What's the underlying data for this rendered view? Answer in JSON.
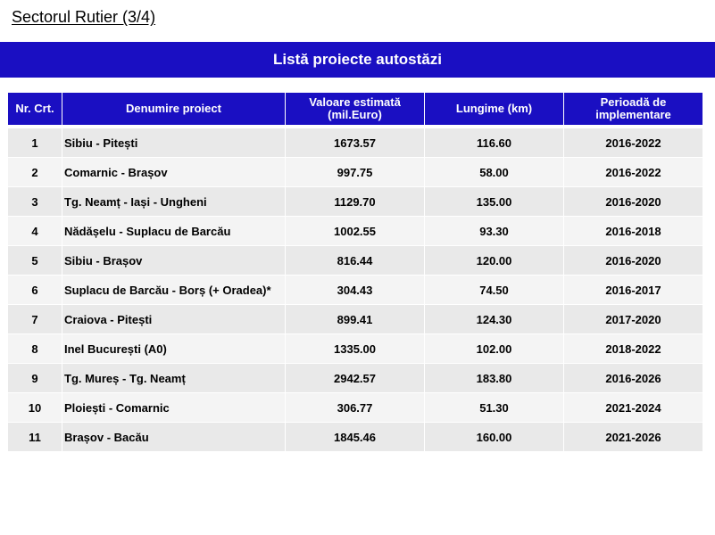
{
  "page": {
    "title": "Sectorul Rutier (3/4)",
    "banner": "Listă proiecte autostăzi"
  },
  "colors": {
    "accent": "#1a0fc2",
    "row_odd": "#e9e9e9",
    "row_even": "#f4f4f4"
  },
  "table": {
    "headers": {
      "nr": "Nr. Crt.",
      "name": "Denumire proiect",
      "value": "Valoare estimată (mil.Euro)",
      "length": "Lungime (km)",
      "period": "Perioadă de implementare"
    },
    "rows": [
      {
        "nr": "1",
        "name": "Sibiu - Pitești",
        "value": "1673.57",
        "length": "116.60",
        "period": "2016-2022"
      },
      {
        "nr": "2",
        "name": "Comarnic - Brașov",
        "value": "997.75",
        "length": "58.00",
        "period": "2016-2022"
      },
      {
        "nr": "3",
        "name": "Tg. Neamț - Iași - Ungheni",
        "value": "1129.70",
        "length": "135.00",
        "period": "2016-2020"
      },
      {
        "nr": "4",
        "name": "Nădășelu - Suplacu de Barcău",
        "value": "1002.55",
        "length": "93.30",
        "period": "2016-2018"
      },
      {
        "nr": "5",
        "name": "Sibiu - Brașov",
        "value": "816.44",
        "length": "120.00",
        "period": "2016-2020"
      },
      {
        "nr": "6",
        "name": "Suplacu de Barcău - Borș (+ Oradea)*",
        "value": "304.43",
        "length": "74.50",
        "period": "2016-2017"
      },
      {
        "nr": "7",
        "name": "Craiova - Pitești",
        "value": "899.41",
        "length": "124.30",
        "period": "2017-2020"
      },
      {
        "nr": "8",
        "name": "Inel București (A0)",
        "value": "1335.00",
        "length": "102.00",
        "period": "2018-2022"
      },
      {
        "nr": "9",
        "name": "Tg. Mureș - Tg. Neamț",
        "value": "2942.57",
        "length": "183.80",
        "period": "2016-2026"
      },
      {
        "nr": "10",
        "name": "Ploiești - Comarnic",
        "value": "306.77",
        "length": "51.30",
        "period": "2021-2024"
      },
      {
        "nr": "11",
        "name": "Brașov - Bacău",
        "value": "1845.46",
        "length": "160.00",
        "period": "2021-2026"
      }
    ]
  }
}
